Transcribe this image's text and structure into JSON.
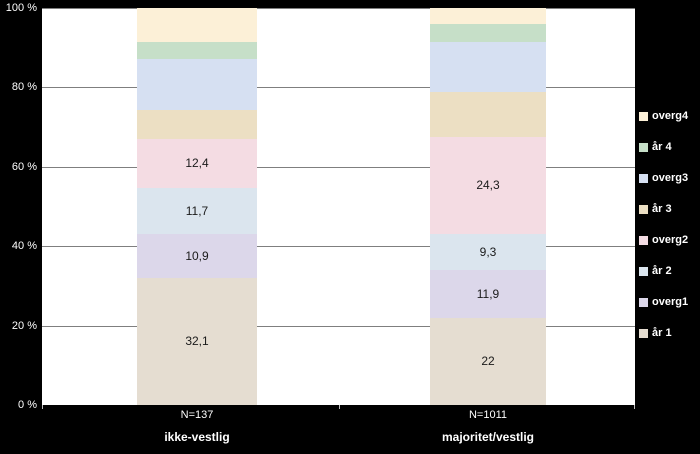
{
  "chart_data": {
    "type": "bar",
    "subtype": "stacked-100-percent",
    "title": "",
    "xlabel": "",
    "ylabel": "",
    "ylim": [
      0,
      100
    ],
    "grid": true,
    "legend_position": "right",
    "categories": [
      "N=137",
      "N=1011"
    ],
    "group_labels": [
      "ikke-vestlig",
      "majoritet/vestlig"
    ],
    "yticks": [
      {
        "value": 0,
        "label": "0 %"
      },
      {
        "value": 20,
        "label": "20 %"
      },
      {
        "value": 40,
        "label": "40 %"
      },
      {
        "value": 60,
        "label": "60 %"
      },
      {
        "value": 80,
        "label": "80 %"
      },
      {
        "value": 100,
        "label": "100 %"
      }
    ],
    "legend_order": [
      "overg4",
      "år 4",
      "overg3",
      "år 3",
      "overg2",
      "år 2",
      "overg1",
      "år 1"
    ],
    "series": [
      {
        "name": "år 1",
        "color": "#e5ddd1",
        "values": [
          32.1,
          22.0
        ],
        "labels": [
          "32,1",
          "22"
        ]
      },
      {
        "name": "overg1",
        "color": "#dcd7ea",
        "values": [
          10.9,
          11.9
        ],
        "labels": [
          "10,9",
          "11,9"
        ]
      },
      {
        "name": "år 2",
        "color": "#dbe5ee",
        "values": [
          11.7,
          9.3
        ],
        "labels": [
          "11,7",
          "9,3"
        ]
      },
      {
        "name": "overg2",
        "color": "#f4dce3",
        "values": [
          12.4,
          24.3
        ],
        "labels": [
          "12,4",
          "24,3"
        ]
      },
      {
        "name": "år 3",
        "color": "#ecdfc3",
        "values": [
          7.2,
          11.3
        ],
        "labels": [
          null,
          null
        ]
      },
      {
        "name": "overg3",
        "color": "#d6e0f2",
        "values": [
          12.9,
          12.6
        ],
        "labels": [
          null,
          null
        ]
      },
      {
        "name": "år 4",
        "color": "#c6dfc8",
        "values": [
          4.2,
          4.6
        ],
        "labels": [
          null,
          null
        ]
      },
      {
        "name": "overg4",
        "color": "#fcf0d7",
        "values": [
          8.6,
          4.0
        ],
        "labels": [
          null,
          null
        ]
      }
    ]
  }
}
